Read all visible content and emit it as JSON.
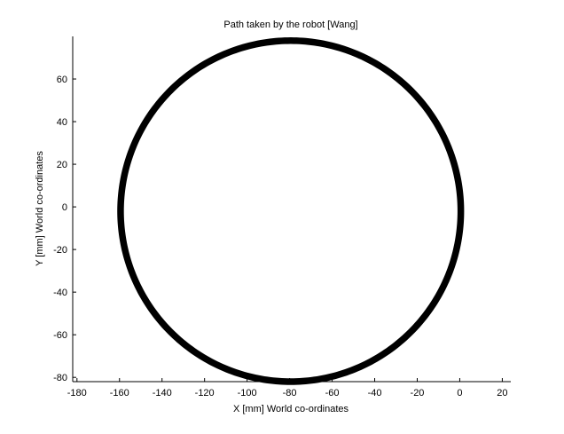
{
  "chart_data": {
    "type": "line",
    "title": "Path taken by the robot [Wang]",
    "xlabel": "X [mm] World co-ordinates",
    "ylabel": "Y [mm] World co-ordinates",
    "xlim": [
      -182,
      24
    ],
    "ylim": [
      -82,
      80
    ],
    "xticks": [
      -180,
      -160,
      -140,
      -120,
      -100,
      -80,
      -60,
      -40,
      -20,
      0,
      20
    ],
    "yticks": [
      -80,
      -60,
      -40,
      -20,
      0,
      20,
      40,
      60
    ],
    "grid": false,
    "series": [
      {
        "shape": "circle",
        "center": [
          -79.5,
          -2
        ],
        "radius_x": 80,
        "radius_y": 80,
        "color": "#000000",
        "points": 360
      }
    ]
  }
}
